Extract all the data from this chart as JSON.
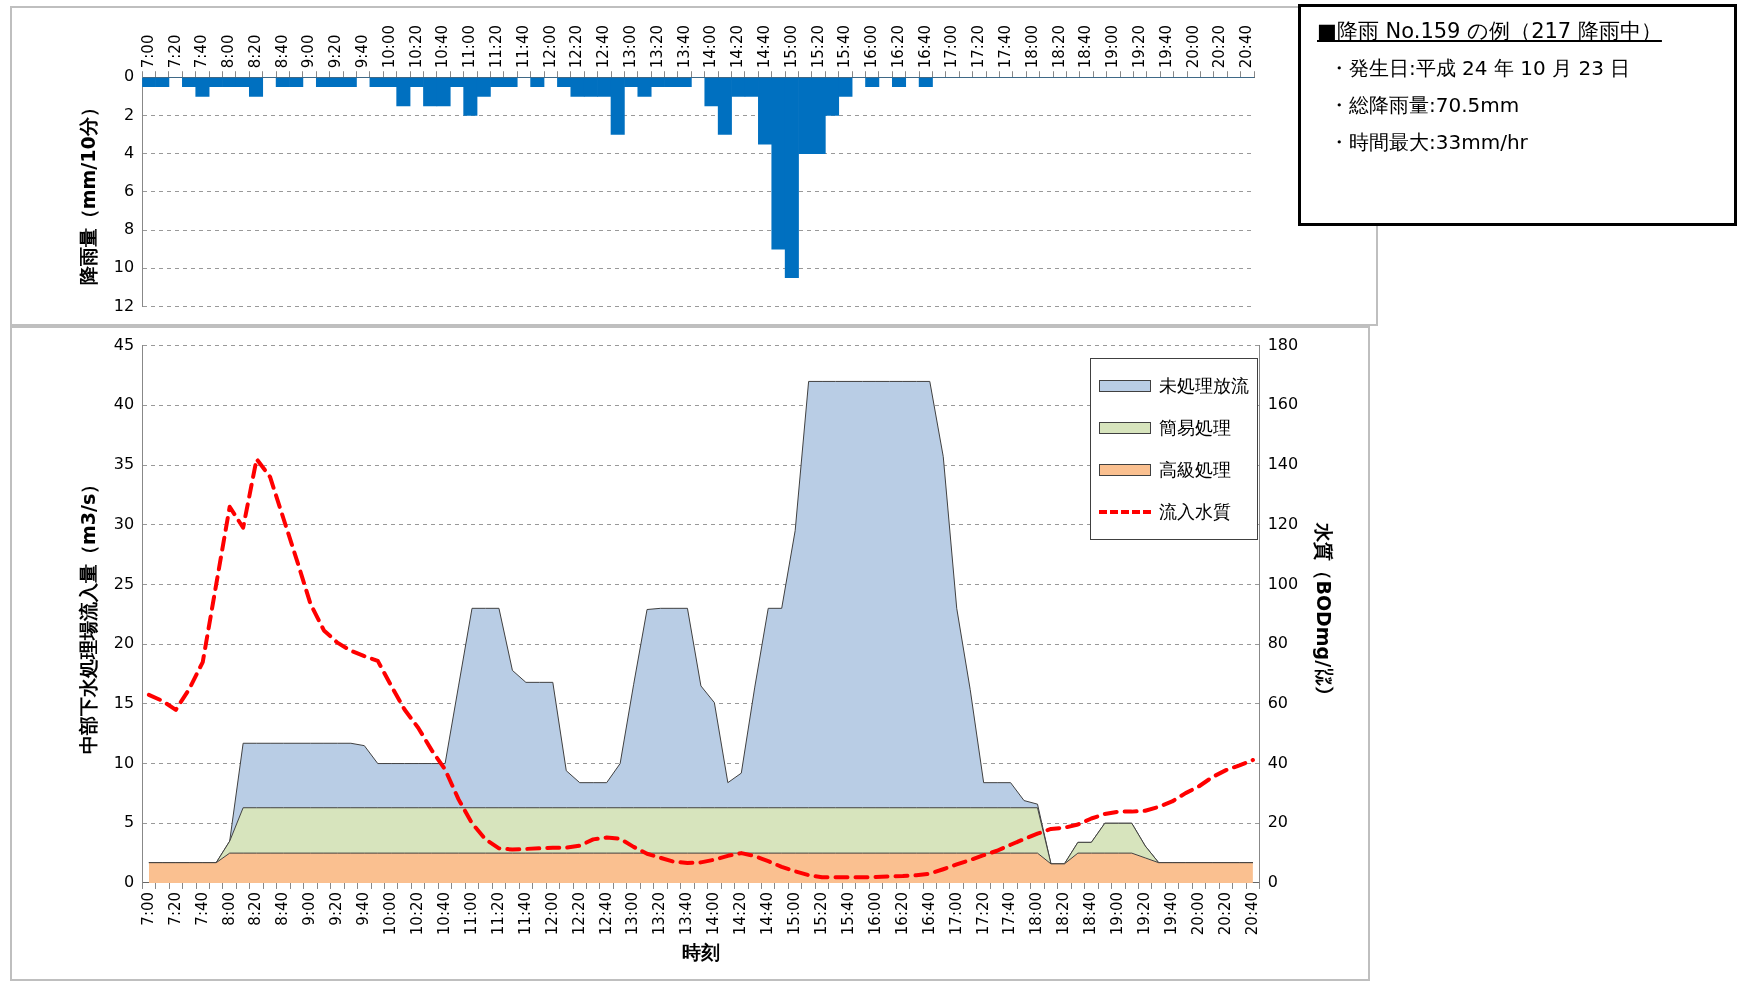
{
  "chart_data": [
    {
      "type": "bar",
      "ylabel": "降雨量（mm/10分）",
      "categories": [
        "7:00",
        null,
        "7:20",
        null,
        "7:40",
        null,
        "8:00",
        null,
        "8:20",
        null,
        "8:40",
        null,
        "9:00",
        null,
        "9:20",
        null,
        "9:40",
        null,
        "10:00",
        null,
        "10:20",
        null,
        "10:40",
        null,
        "11:00",
        null,
        "11:20",
        null,
        "11:40",
        null,
        "12:00",
        null,
        "12:20",
        null,
        "12:40",
        null,
        "13:00",
        null,
        "13:20",
        null,
        "13:40",
        null,
        "14:00",
        null,
        "14:20",
        null,
        "14:40",
        null,
        "15:00",
        null,
        "15:20",
        null,
        "15:40",
        null,
        "16:00",
        null,
        "16:20",
        null,
        "16:40",
        null,
        "17:00",
        null,
        "17:20",
        null,
        "17:40",
        null,
        "18:00",
        null,
        "18:20",
        null,
        "18:40",
        null,
        "19:00",
        null,
        "19:20",
        null,
        "19:40",
        null,
        "20:00",
        null,
        "20:20",
        null,
        "20:40"
      ],
      "values": [
        0.5,
        0.5,
        0,
        0.5,
        1,
        0.5,
        0.5,
        0.5,
        1,
        0,
        0.5,
        0.5,
        0,
        0.5,
        0.5,
        0.5,
        0,
        0.5,
        0.5,
        1.5,
        0.5,
        1.5,
        1.5,
        0.5,
        2,
        1,
        0.5,
        0.5,
        0,
        0.5,
        0,
        0.5,
        1,
        1,
        1,
        3,
        0.5,
        1,
        0.5,
        0.5,
        0.5,
        0,
        1.5,
        3,
        1,
        1,
        3.5,
        9,
        10.5,
        4,
        4,
        2,
        1,
        0,
        0.5,
        0,
        0.5,
        0,
        0.5,
        0,
        0,
        0,
        0,
        0,
        0,
        0,
        0,
        0,
        0,
        0,
        0,
        0,
        0,
        0,
        0,
        0,
        0,
        0,
        0,
        0,
        0,
        0,
        0
      ],
      "color": "#0070c0",
      "ylim": [
        12,
        0
      ],
      "yticks": [
        0,
        2,
        4,
        6,
        8,
        10,
        12
      ],
      "grid": "y"
    },
    {
      "type": "area",
      "stacked": true,
      "xlabel": "時刻",
      "ylabel": "中部下水処理場流入量（m3/s）",
      "y2label": "水質（BODmg/㍑）",
      "categories": [
        "7:00",
        null,
        "7:20",
        null,
        "7:40",
        null,
        "8:00",
        null,
        "8:20",
        null,
        "8:40",
        null,
        "9:00",
        null,
        "9:20",
        null,
        "9:40",
        null,
        "10:00",
        null,
        "10:20",
        null,
        "10:40",
        null,
        "11:00",
        null,
        "11:20",
        null,
        "11:40",
        null,
        "12:00",
        null,
        "12:20",
        null,
        "12:40",
        null,
        "13:00",
        null,
        "13:20",
        null,
        "13:40",
        null,
        "14:00",
        null,
        "14:20",
        null,
        "14:40",
        null,
        "15:00",
        null,
        "15:20",
        null,
        "15:40",
        null,
        "16:00",
        null,
        "16:20",
        null,
        "16:40",
        null,
        "17:00",
        null,
        "17:20",
        null,
        "17:40",
        null,
        "18:00",
        null,
        "18:20",
        null,
        "18:40",
        null,
        "19:00",
        null,
        "19:20",
        null,
        "19:40",
        null,
        "20:00",
        null,
        "20:20",
        null,
        "20:40"
      ],
      "series": [
        {
          "name": "高級処理",
          "color": "#fac090",
          "values": [
            1.7,
            1.7,
            1.7,
            1.7,
            1.7,
            1.7,
            2.5,
            2.5,
            2.5,
            2.5,
            2.5,
            2.5,
            2.5,
            2.5,
            2.5,
            2.5,
            2.5,
            2.5,
            2.5,
            2.5,
            2.5,
            2.5,
            2.5,
            2.5,
            2.5,
            2.5,
            2.5,
            2.5,
            2.5,
            2.5,
            2.5,
            2.5,
            2.5,
            2.5,
            2.5,
            2.5,
            2.5,
            2.5,
            2.5,
            2.5,
            2.5,
            2.5,
            2.5,
            2.5,
            2.5,
            2.5,
            2.5,
            2.5,
            2.5,
            2.5,
            2.5,
            2.5,
            2.5,
            2.5,
            2.5,
            2.5,
            2.5,
            2.5,
            2.5,
            2.5,
            2.5,
            2.5,
            2.5,
            2.5,
            2.5,
            2.5,
            2.5,
            1.6,
            1.6,
            2.5,
            2.5,
            2.5,
            2.5,
            2.5,
            2.1,
            1.7,
            1.7,
            1.7,
            1.7,
            1.7,
            1.7,
            1.7,
            1.7
          ]
        },
        {
          "name": "簡易処理",
          "color": "#d7e4bd",
          "values": [
            0,
            0,
            0,
            0,
            0,
            0,
            1.0,
            3.8,
            3.8,
            3.8,
            3.8,
            3.8,
            3.8,
            3.8,
            3.8,
            3.8,
            3.8,
            3.8,
            3.8,
            3.8,
            3.8,
            3.8,
            3.8,
            3.8,
            3.8,
            3.8,
            3.8,
            3.8,
            3.8,
            3.8,
            3.8,
            3.8,
            3.8,
            3.8,
            3.8,
            3.8,
            3.8,
            3.8,
            3.8,
            3.8,
            3.8,
            3.8,
            3.8,
            3.8,
            3.8,
            3.8,
            3.8,
            3.8,
            3.8,
            3.8,
            3.8,
            3.8,
            3.8,
            3.8,
            3.8,
            3.8,
            3.8,
            3.8,
            3.8,
            3.8,
            3.8,
            3.8,
            3.8,
            3.8,
            3.8,
            3.8,
            3.8,
            0,
            0,
            0.9,
            0.9,
            2.5,
            2.5,
            2.5,
            1.0,
            0,
            0,
            0,
            0,
            0,
            0,
            0,
            0
          ]
        },
        {
          "name": "未処理放流",
          "color": "#b9cde5",
          "values": [
            0,
            0,
            0,
            0,
            0,
            0,
            0,
            5.4,
            5.4,
            5.4,
            5.4,
            5.4,
            5.4,
            5.4,
            5.4,
            5.4,
            5.2,
            3.7,
            3.7,
            3.7,
            3.7,
            3.7,
            3.7,
            10.2,
            16.7,
            16.7,
            16.7,
            11.5,
            10.5,
            10.5,
            10.5,
            3.1,
            2.1,
            2.1,
            2.1,
            3.7,
            10.3,
            16.6,
            16.7,
            16.7,
            16.7,
            10.2,
            8.8,
            2.1,
            2.9,
            10.1,
            16.7,
            16.7,
            23.2,
            35.7,
            35.7,
            35.7,
            35.7,
            35.7,
            35.7,
            35.7,
            35.7,
            35.7,
            35.7,
            29.4,
            16.7,
            9.9,
            2.1,
            2.1,
            2.1,
            0.6,
            0.3,
            0,
            0,
            0,
            0,
            0,
            0,
            0,
            0,
            0,
            0,
            0,
            0,
            0,
            0,
            0,
            0
          ]
        },
        {
          "name": "流入水質",
          "color": "#ff0000",
          "type": "line",
          "axis": "y2",
          "line_style": "dashed",
          "values": [
            63,
            61,
            58,
            65,
            74,
            100,
            126,
            119,
            142,
            136,
            122,
            108,
            93.5,
            84.6,
            80.5,
            77.8,
            76,
            74.4,
            66,
            58,
            52,
            44.5,
            38,
            28,
            20,
            14.6,
            11.6,
            11.2,
            11.4,
            11.6,
            11.8,
            11.8,
            12.5,
            14.6,
            15.2,
            14.8,
            12.1,
            9.8,
            8.4,
            7.1,
            6.7,
            6.9,
            7.8,
            9.1,
            10,
            9,
            7.3,
            5.4,
            3.9,
            2.6,
            1.9,
            1.9,
            1.9,
            1.9,
            2.0,
            2.2,
            2.3,
            2.6,
            3.1,
            4.6,
            6.2,
            7.7,
            9.3,
            10.8,
            12.8,
            14.7,
            16.5,
            18.1,
            18.5,
            19.6,
            21.6,
            23.1,
            23.9,
            23.9,
            24.2,
            25.5,
            27.3,
            30.1,
            32.4,
            35.5,
            37.8,
            39.4,
            41.2
          ]
        }
      ],
      "ylim": [
        0,
        45
      ],
      "yticks": [
        0,
        5,
        10,
        15,
        20,
        25,
        30,
        35,
        40,
        45
      ],
      "y2lim": [
        0,
        180
      ],
      "y2ticks": [
        0,
        20,
        40,
        60,
        80,
        100,
        120,
        140,
        160,
        180
      ],
      "grid": "y",
      "legend": "top right",
      "marker": "none"
    },
    {
      "type": "other",
      "title": "■降雨 No.159 の例（217 降雨中）",
      "annotations": [
        "・発生日:平成 24 年 10 月 23 日",
        "・総降雨量:70.5mm",
        "・時間最大:33mm/hr"
      ]
    }
  ]
}
